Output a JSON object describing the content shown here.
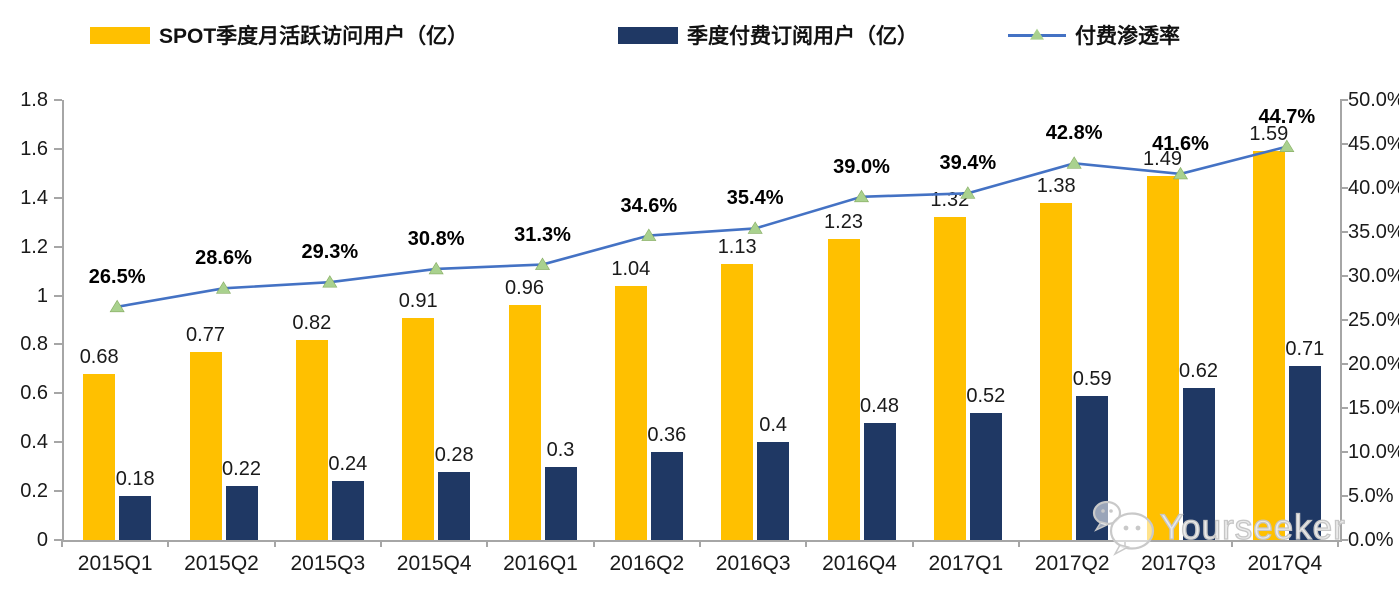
{
  "chart_data": {
    "type": "bar",
    "subtype": "combo-bar-line",
    "legend_position": "top",
    "grid": false,
    "categories": [
      "2015Q1",
      "2015Q2",
      "2015Q3",
      "2015Q4",
      "2016Q1",
      "2016Q2",
      "2016Q3",
      "2016Q4",
      "2017Q1",
      "2017Q2",
      "2017Q3",
      "2017Q4"
    ],
    "series": [
      {
        "name": "SPOT季度月活跃访问用户（亿）",
        "type": "bar",
        "axis": "left",
        "color": "#FFC000",
        "values": [
          0.68,
          0.77,
          0.82,
          0.91,
          0.96,
          1.04,
          1.13,
          1.23,
          1.32,
          1.38,
          1.49,
          1.59
        ],
        "labels": [
          "0.68",
          "0.77",
          "0.82",
          "0.91",
          "0.96",
          "1.04",
          "1.13",
          "1.23",
          "1.32",
          "1.38",
          "1.49",
          "1.59"
        ]
      },
      {
        "name": "季度付费订阅用户（亿）",
        "type": "bar",
        "axis": "left",
        "color": "#1F3864",
        "values": [
          0.18,
          0.22,
          0.24,
          0.28,
          0.3,
          0.36,
          0.4,
          0.48,
          0.52,
          0.59,
          0.62,
          0.71
        ],
        "labels": [
          "0.18",
          "0.22",
          "0.24",
          "0.28",
          "0.3",
          "0.36",
          "0.4",
          "0.48",
          "0.52",
          "0.59",
          "0.62",
          "0.71"
        ]
      },
      {
        "name": "付费渗透率",
        "type": "line",
        "axis": "right",
        "color": "#4472C4",
        "marker_color": "#A9D18E",
        "values": [
          26.5,
          28.6,
          29.3,
          30.8,
          31.3,
          34.6,
          35.4,
          39.0,
          39.4,
          42.8,
          41.6,
          44.7
        ],
        "labels": [
          "26.5%",
          "28.6%",
          "29.3%",
          "30.8%",
          "31.3%",
          "34.6%",
          "35.4%",
          "39.0%",
          "39.4%",
          "42.8%",
          "41.6%",
          "44.7%"
        ]
      }
    ],
    "left_axis": {
      "min": 0,
      "max": 1.8,
      "step": 0.2,
      "ticks": [
        "0",
        "0.2",
        "0.4",
        "0.6",
        "0.8",
        "1",
        "1.2",
        "1.4",
        "1.6",
        "1.8"
      ]
    },
    "right_axis": {
      "min": 0,
      "max": 50,
      "step": 5,
      "ticks": [
        "0.0%",
        "5.0%",
        "10.0%",
        "15.0%",
        "20.0%",
        "25.0%",
        "30.0%",
        "35.0%",
        "40.0%",
        "45.0%",
        "50.0%"
      ]
    }
  },
  "watermark": {
    "text": "Yourseeker",
    "icon": "wechat-icon"
  }
}
